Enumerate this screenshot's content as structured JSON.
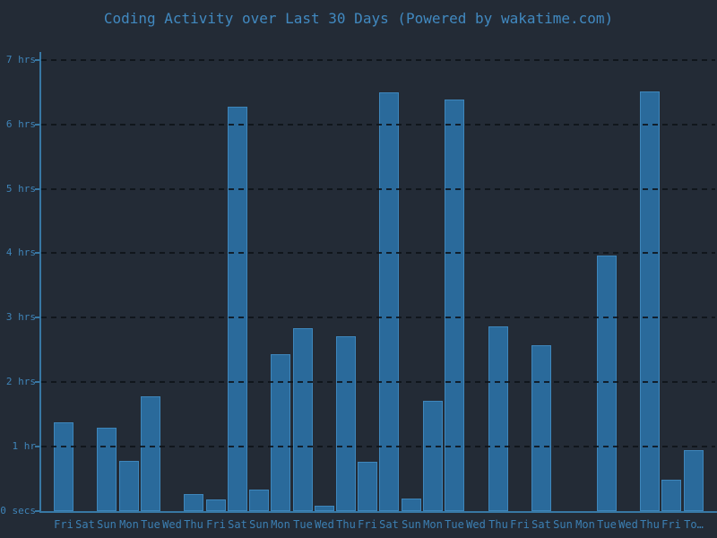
{
  "colors": {
    "background": "#232b36",
    "bar_fill": "#2a6a9b",
    "bar_border": "#3e86bb",
    "axis_line": "#3878a4",
    "gridline": "#11161c",
    "title_text": "#4189c0",
    "tick_text": "#3c80b4"
  },
  "chart_data": {
    "type": "bar",
    "title": "Coding Activity over Last 30 Days (Powered by wakatime.com)",
    "xlabel": "",
    "ylabel": "",
    "unit": "hours",
    "ylim": [
      0,
      7.1
    ],
    "grid": "horizontal-dashed",
    "legend": "none",
    "categories": [
      "Fri",
      "Sat",
      "Sun",
      "Mon",
      "Tue",
      "Wed",
      "Thu",
      "Fri",
      "Sat",
      "Sun",
      "Mon",
      "Tue",
      "Wed",
      "Thu",
      "Fri",
      "Sat",
      "Sun",
      "Mon",
      "Tue",
      "Wed",
      "Thu",
      "Fri",
      "Sat",
      "Sun",
      "Mon",
      "Tue",
      "Wed",
      "Thu",
      "Fri",
      "To…"
    ],
    "values": [
      1.38,
      0,
      1.3,
      0.78,
      1.78,
      0,
      0.26,
      0.18,
      6.27,
      0.34,
      2.43,
      2.84,
      0.08,
      2.71,
      0.76,
      6.49,
      0.19,
      1.71,
      6.38,
      0,
      2.87,
      0,
      2.57,
      0,
      0,
      3.97,
      0,
      6.51,
      0.48,
      0.94
    ],
    "yticks": [
      {
        "value": 7,
        "label": "7 hrs"
      },
      {
        "value": 6,
        "label": "6 hrs"
      },
      {
        "value": 5,
        "label": "5 hrs"
      },
      {
        "value": 4,
        "label": "4 hrs"
      },
      {
        "value": 3,
        "label": "3 hrs"
      },
      {
        "value": 2,
        "label": "2 hrs"
      },
      {
        "value": 1,
        "label": "1 hr"
      },
      {
        "value": 0,
        "label": "0 secs"
      }
    ]
  }
}
